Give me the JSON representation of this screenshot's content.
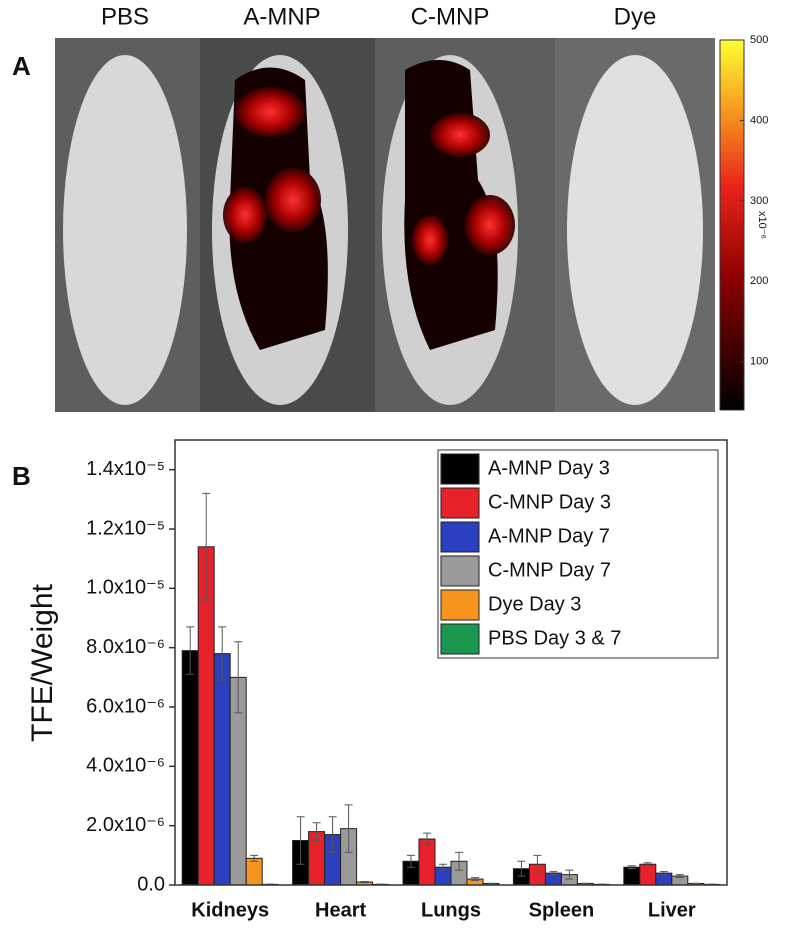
{
  "chart_data": [
    {
      "type": "image",
      "panel_label": "A",
      "categories": [
        "PBS",
        "A-MNP",
        "C-MNP",
        "Dye"
      ],
      "colorbar": {
        "clim": [
          40,
          500
        ],
        "ticks": [
          100,
          200,
          300,
          400,
          500
        ],
        "label": "x10⁻⁶"
      }
    },
    {
      "type": "bar",
      "panel_label": "B",
      "y_label": "TFE/Weight",
      "categories": [
        "Kidneys",
        "Heart",
        "Lungs",
        "Spleen",
        "Liver"
      ],
      "ylim": [
        0,
        1.5e-05
      ],
      "yticks": [
        {
          "value": 0,
          "label": "0.0"
        },
        {
          "value": 2e-06,
          "label": "2.0x10⁻⁶"
        },
        {
          "value": 4e-06,
          "label": "4.0x10⁻⁶"
        },
        {
          "value": 6e-06,
          "label": "6.0x10⁻⁶"
        },
        {
          "value": 8e-06,
          "label": "8.0x10⁻⁶"
        },
        {
          "value": 1e-05,
          "label": "1.0x10⁻⁵"
        },
        {
          "value": 1.2e-05,
          "label": "1.2x10⁻⁵"
        },
        {
          "value": 1.4e-05,
          "label": "1.4x10⁻⁵"
        }
      ],
      "legend": "upper right",
      "series": [
        {
          "name": "A-MNP Day 3",
          "color": "#000000",
          "values": [
            7.9e-06,
            1.5e-06,
            8e-07,
            5.5e-07,
            6e-07
          ],
          "errors": [
            8e-07,
            8e-07,
            2e-07,
            2.5e-07,
            5e-08
          ]
        },
        {
          "name": "C-MNP Day 3",
          "color": "#e8222b",
          "values": [
            1.14e-05,
            1.8e-06,
            1.55e-06,
            7e-07,
            7e-07
          ],
          "errors": [
            1.8e-06,
            3e-07,
            2e-07,
            3e-07,
            5e-08
          ]
        },
        {
          "name": "A-MNP Day 7",
          "color": "#2b3fbf",
          "values": [
            7.8e-06,
            1.7e-06,
            6e-07,
            4e-07,
            4e-07
          ],
          "errors": [
            9e-07,
            6e-07,
            1e-07,
            5e-08,
            5e-08
          ]
        },
        {
          "name": "C-MNP Day 7",
          "color": "#9a9a9a",
          "values": [
            7e-06,
            1.9e-06,
            8e-07,
            3.5e-07,
            3e-07
          ],
          "errors": [
            1.2e-06,
            8e-07,
            3e-07,
            1.5e-07,
            5e-08
          ]
        },
        {
          "name": "Dye Day 3",
          "color": "#f7941d",
          "values": [
            9e-07,
            1e-07,
            2e-07,
            5e-08,
            5e-08
          ],
          "errors": [
            1e-07,
            2e-08,
            5e-08,
            1e-08,
            1e-08
          ]
        },
        {
          "name": "PBS Day 3 & 7",
          "color": "#1a9850",
          "values": [
            2e-08,
            2e-08,
            5e-08,
            2e-08,
            2e-08
          ],
          "errors": [
            1e-08,
            1e-08,
            1e-08,
            1e-08,
            1e-08
          ]
        }
      ]
    }
  ]
}
